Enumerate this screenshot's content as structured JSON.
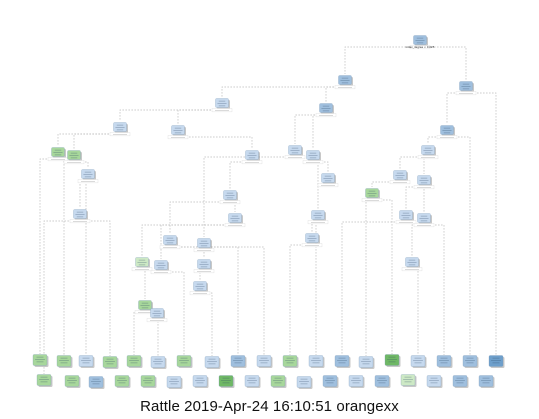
{
  "footer": {
    "caption": "Rattle 2019-Apr-24 16:10:51 orangexx"
  },
  "colors": {
    "blue_node": "#9fbfde",
    "blue_node_dark": "#6e9fcb",
    "light_blue_node": "#c6d9ee",
    "green_node": "#a7d79b",
    "dark_green_node": "#6fb865",
    "light_green_node": "#cde9c5",
    "edge": "#bdbdbd",
    "shadow": "#9a9a9a"
  },
  "tree": {
    "root_split_label": "index_degree < 0.025",
    "leaf_count": 19
  }
}
